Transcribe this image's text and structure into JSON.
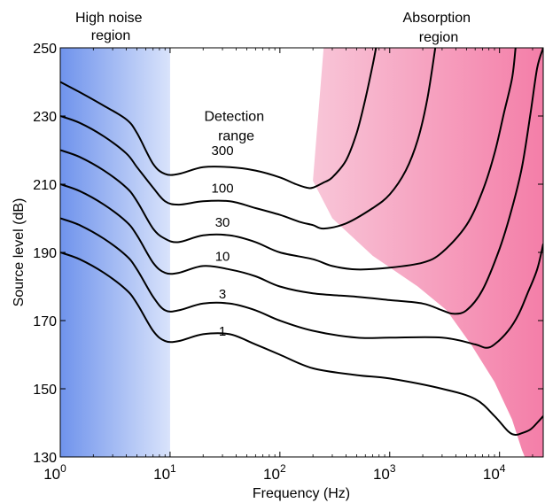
{
  "chart_data": {
    "type": "line",
    "x_scale": "log",
    "xlim": [
      1,
      25000
    ],
    "ylim": [
      130,
      250
    ],
    "xlabel": "Frequency (Hz)",
    "ylabel": "Source level (dB)",
    "x_ticks": [
      {
        "value": 1,
        "base": "10",
        "exp": "0"
      },
      {
        "value": 10,
        "base": "10",
        "exp": "1"
      },
      {
        "value": 100,
        "base": "10",
        "exp": "2"
      },
      {
        "value": 1000,
        "base": "10",
        "exp": "3"
      },
      {
        "value": 10000,
        "base": "10",
        "exp": "4"
      }
    ],
    "y_ticks": [
      130,
      150,
      170,
      190,
      210,
      230,
      250
    ],
    "regions": [
      {
        "name": "high-noise",
        "label_lines": [
          "High noise",
          "region"
        ],
        "color": "#6f93ec",
        "x_range": [
          1,
          10
        ]
      },
      {
        "name": "absorption",
        "label_lines": [
          "Absorption",
          "region"
        ],
        "color": "#f47ea8",
        "boundary": [
          [
            250,
            250
          ],
          [
            200,
            211
          ],
          [
            300,
            200
          ],
          [
            700,
            189
          ],
          [
            1800,
            180
          ],
          [
            3300,
            173
          ],
          [
            5500,
            163
          ],
          [
            9000,
            152
          ],
          [
            13000,
            141
          ],
          [
            16000,
            132
          ],
          [
            17000,
            130
          ]
        ]
      }
    ],
    "annotation": {
      "lines": [
        "Detection",
        "range"
      ],
      "x": 40,
      "y": 225
    },
    "series": [
      {
        "name": "300",
        "label_x": 30,
        "label_y": 217,
        "points": [
          [
            1,
            240
          ],
          [
            1.5,
            237
          ],
          [
            2.5,
            233
          ],
          [
            4,
            229
          ],
          [
            5,
            225
          ],
          [
            7,
            216
          ],
          [
            9,
            213
          ],
          [
            12,
            213
          ],
          [
            20,
            215
          ],
          [
            35,
            215
          ],
          [
            60,
            214
          ],
          [
            100,
            212
          ],
          [
            140,
            210
          ],
          [
            175,
            209
          ],
          [
            200,
            209
          ],
          [
            250,
            210.5
          ],
          [
            300,
            212
          ],
          [
            400,
            217
          ],
          [
            500,
            225
          ],
          [
            600,
            235
          ],
          [
            700,
            245
          ],
          [
            750,
            250
          ]
        ]
      },
      {
        "name": "100",
        "label_x": 30,
        "label_y": 206,
        "points": [
          [
            1,
            230
          ],
          [
            1.5,
            228
          ],
          [
            2.5,
            224
          ],
          [
            4,
            219
          ],
          [
            5,
            215
          ],
          [
            7,
            209
          ],
          [
            9,
            205
          ],
          [
            12,
            204
          ],
          [
            20,
            205
          ],
          [
            35,
            205
          ],
          [
            60,
            203
          ],
          [
            100,
            201
          ],
          [
            150,
            199
          ],
          [
            200,
            198
          ],
          [
            250,
            197
          ],
          [
            400,
            198.5
          ],
          [
            700,
            203
          ],
          [
            1000,
            207
          ],
          [
            1400,
            214
          ],
          [
            1800,
            223
          ],
          [
            2200,
            235
          ],
          [
            2600,
            250
          ]
        ]
      },
      {
        "name": "30",
        "label_x": 30,
        "label_y": 196,
        "points": [
          [
            1,
            220
          ],
          [
            1.5,
            218
          ],
          [
            2.5,
            214
          ],
          [
            4,
            209
          ],
          [
            5,
            205
          ],
          [
            7,
            197
          ],
          [
            9,
            194
          ],
          [
            12,
            193
          ],
          [
            20,
            195
          ],
          [
            35,
            195
          ],
          [
            60,
            193
          ],
          [
            100,
            190
          ],
          [
            200,
            188
          ],
          [
            300,
            186
          ],
          [
            500,
            185
          ],
          [
            1000,
            185.5
          ],
          [
            2000,
            187
          ],
          [
            3000,
            190
          ],
          [
            5000,
            198
          ],
          [
            7000,
            208
          ],
          [
            9000,
            219
          ],
          [
            11000,
            231
          ],
          [
            13000,
            241
          ],
          [
            14000,
            250
          ]
        ]
      },
      {
        "name": "10",
        "label_x": 30,
        "label_y": 186,
        "points": [
          [
            1,
            210
          ],
          [
            1.5,
            208
          ],
          [
            2.5,
            204
          ],
          [
            4,
            199
          ],
          [
            5,
            195
          ],
          [
            7,
            187
          ],
          [
            9,
            184
          ],
          [
            12,
            184
          ],
          [
            20,
            186
          ],
          [
            35,
            185
          ],
          [
            60,
            183
          ],
          [
            100,
            180
          ],
          [
            200,
            178
          ],
          [
            500,
            177
          ],
          [
            1000,
            176
          ],
          [
            2000,
            175
          ],
          [
            3000,
            173
          ],
          [
            3800,
            172
          ],
          [
            5000,
            173
          ],
          [
            7000,
            179
          ],
          [
            10000,
            191
          ],
          [
            13000,
            203
          ],
          [
            16000,
            215
          ],
          [
            19000,
            230
          ],
          [
            22000,
            244
          ],
          [
            25000,
            250
          ]
        ]
      },
      {
        "name": "3",
        "label_x": 30,
        "label_y": 175,
        "points": [
          [
            1,
            200
          ],
          [
            1.5,
            198
          ],
          [
            2.5,
            194
          ],
          [
            4,
            189
          ],
          [
            5,
            185
          ],
          [
            7,
            177
          ],
          [
            9,
            173
          ],
          [
            12,
            173
          ],
          [
            20,
            175
          ],
          [
            35,
            175
          ],
          [
            60,
            173
          ],
          [
            100,
            170
          ],
          [
            200,
            167
          ],
          [
            500,
            165
          ],
          [
            1000,
            165
          ],
          [
            3000,
            165
          ],
          [
            6000,
            163
          ],
          [
            7500,
            162
          ],
          [
            9000,
            163
          ],
          [
            12000,
            167
          ],
          [
            15000,
            172
          ],
          [
            18000,
            178
          ],
          [
            22000,
            185
          ],
          [
            25000,
            192.5
          ]
        ]
      },
      {
        "name": "1",
        "label_x": 30,
        "label_y": 164,
        "points": [
          [
            1,
            190
          ],
          [
            1.5,
            188
          ],
          [
            2.5,
            184
          ],
          [
            4,
            179
          ],
          [
            5,
            175
          ],
          [
            7,
            167
          ],
          [
            9,
            164
          ],
          [
            12,
            164
          ],
          [
            20,
            166
          ],
          [
            35,
            166
          ],
          [
            60,
            163
          ],
          [
            100,
            160
          ],
          [
            200,
            156
          ],
          [
            500,
            154
          ],
          [
            1000,
            153
          ],
          [
            3000,
            150
          ],
          [
            6000,
            147
          ],
          [
            9000,
            142
          ],
          [
            12000,
            137.5
          ],
          [
            14000,
            136.5
          ],
          [
            16000,
            137
          ],
          [
            19000,
            138
          ],
          [
            22000,
            140
          ],
          [
            25000,
            142
          ]
        ]
      }
    ]
  }
}
